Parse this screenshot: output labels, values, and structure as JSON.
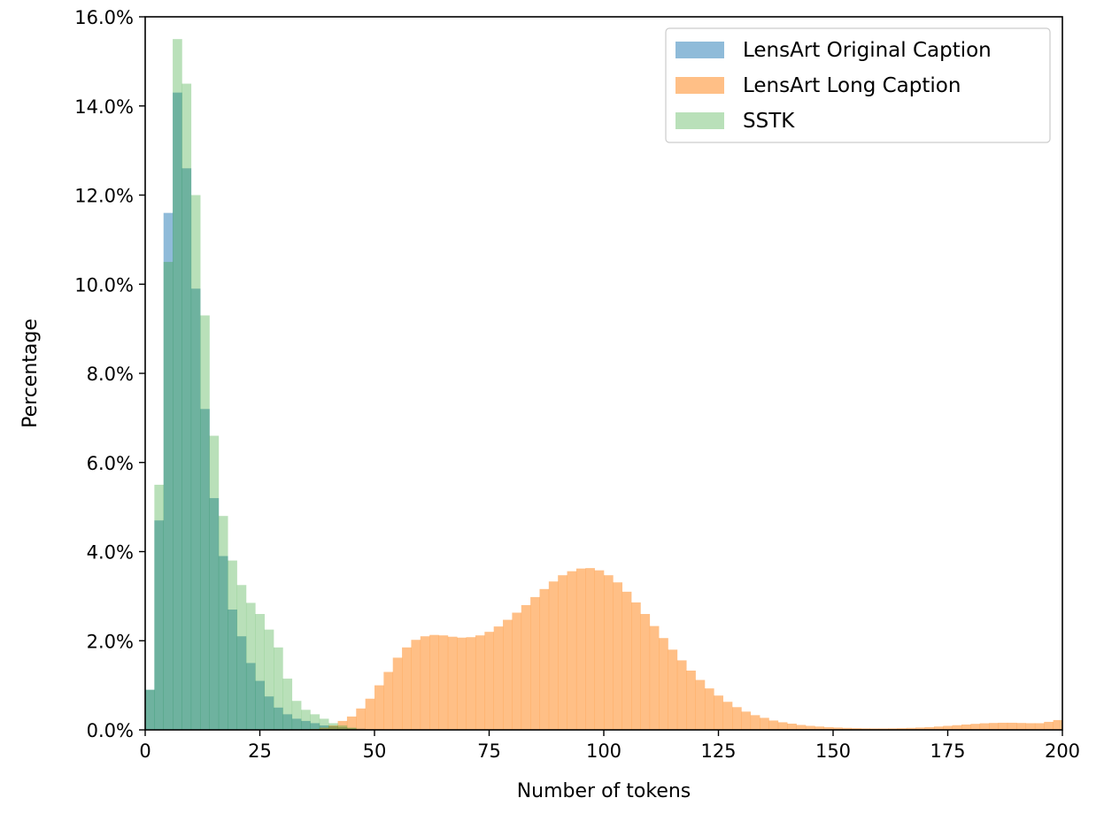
{
  "chart_data": {
    "type": "bar",
    "title": "",
    "xlabel": "Number of tokens",
    "ylabel": "Percentage",
    "xlim": [
      0,
      200
    ],
    "ylim": [
      0,
      16
    ],
    "x_ticks": [
      0,
      25,
      50,
      75,
      100,
      125,
      150,
      175,
      200
    ],
    "y_ticks": [
      0,
      2,
      4,
      6,
      8,
      10,
      12,
      14,
      16
    ],
    "y_tick_suffix": "%",
    "grid": false,
    "legend_position": "top-right",
    "bin_width": 2,
    "series": [
      {
        "name": "LensArt Original Caption",
        "color": "#1f77b4",
        "opacity": 0.5,
        "bin_start": 0,
        "values": [
          0.9,
          4.7,
          11.6,
          14.3,
          12.6,
          9.9,
          7.2,
          5.2,
          3.9,
          2.7,
          2.1,
          1.5,
          1.1,
          0.75,
          0.5,
          0.35,
          0.25,
          0.2,
          0.15,
          0.1,
          0.08,
          0.06,
          0.04,
          0.03,
          0.02,
          0.015,
          0.01,
          0.01
        ]
      },
      {
        "name": "LensArt Long Caption",
        "color": "#ff7f0e",
        "opacity": 0.5,
        "bin_start": 36,
        "values": [
          0.02,
          0.05,
          0.1,
          0.2,
          0.3,
          0.48,
          0.7,
          1.0,
          1.3,
          1.62,
          1.85,
          2.02,
          2.1,
          2.13,
          2.12,
          2.09,
          2.07,
          2.08,
          2.12,
          2.2,
          2.32,
          2.47,
          2.63,
          2.8,
          2.98,
          3.16,
          3.33,
          3.47,
          3.56,
          3.62,
          3.63,
          3.58,
          3.47,
          3.31,
          3.1,
          2.86,
          2.6,
          2.33,
          2.06,
          1.8,
          1.56,
          1.33,
          1.12,
          0.93,
          0.77,
          0.63,
          0.51,
          0.41,
          0.33,
          0.27,
          0.21,
          0.17,
          0.14,
          0.11,
          0.09,
          0.075,
          0.062,
          0.052,
          0.044,
          0.038,
          0.034,
          0.032,
          0.032,
          0.034,
          0.038,
          0.044,
          0.052,
          0.062,
          0.075,
          0.09,
          0.105,
          0.12,
          0.135,
          0.148,
          0.155,
          0.16,
          0.16,
          0.155,
          0.15,
          0.15,
          0.18,
          0.22
        ]
      },
      {
        "name": "SSTK",
        "color": "#2ca02c",
        "opacity": 0.33,
        "bin_start": 0,
        "values": [
          0.9,
          5.5,
          10.5,
          15.5,
          14.5,
          12.0,
          9.3,
          6.6,
          4.8,
          3.8,
          3.25,
          2.85,
          2.6,
          2.25,
          1.85,
          1.15,
          0.65,
          0.45,
          0.35,
          0.25,
          0.15,
          0.1,
          0.05
        ]
      }
    ]
  }
}
